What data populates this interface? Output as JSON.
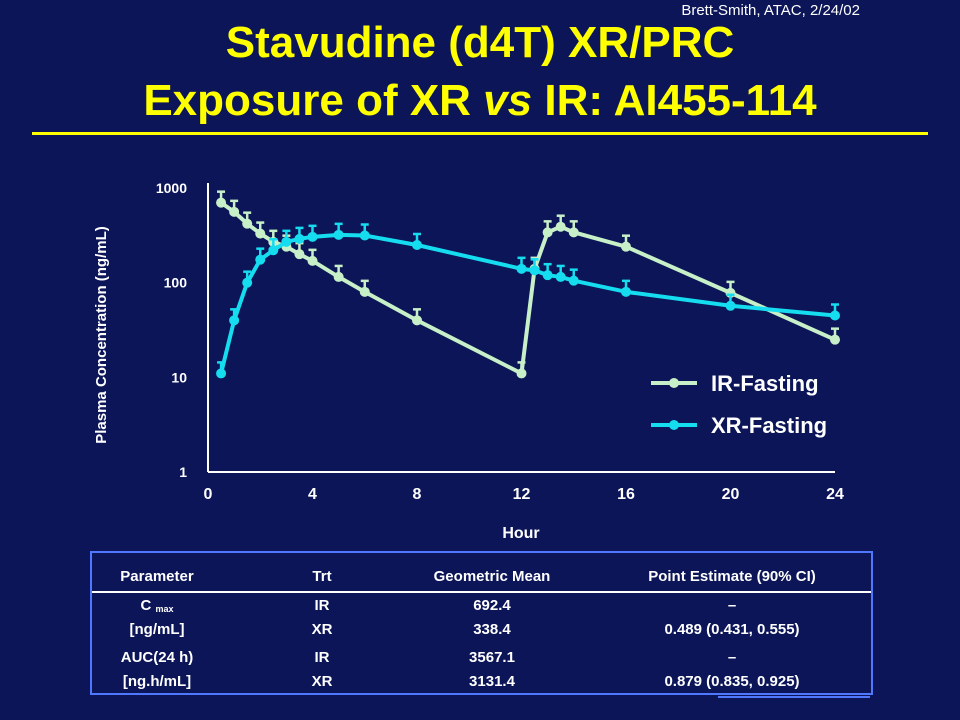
{
  "slide": {
    "credit": "Brett-Smith, ATAC, 2/24/02",
    "title_line1": "Stavudine (d4T) XR/PRC",
    "title_line2_pre": "Exposure of XR ",
    "title_line2_italic": "vs",
    "title_line2_post": " IR:  AI455-114"
  },
  "chart_data": {
    "type": "line",
    "ylabel": "Plasma Concentration (ng/mL)",
    "xlabel": "Hour",
    "x_ticks": [
      "0",
      "4",
      "8",
      "12",
      "16",
      "20",
      "24"
    ],
    "y_ticks": [
      "1",
      "10",
      "100",
      "1000"
    ],
    "yscale": "log",
    "xlim": [
      0,
      24
    ],
    "ylim": [
      1,
      1000
    ],
    "legend_position": "bottom-right",
    "series": [
      {
        "name": "IR-Fasting",
        "color": "#c8f0c8",
        "x": [
          0.5,
          1,
          1.5,
          2,
          2.5,
          3,
          3.5,
          4,
          5,
          6,
          8,
          12,
          12.5,
          13,
          13.5,
          14,
          16,
          20,
          24
        ],
        "y": [
          700,
          560,
          420,
          330,
          270,
          240,
          200,
          170,
          115,
          80,
          40,
          11,
          140,
          340,
          390,
          340,
          240,
          78,
          25
        ]
      },
      {
        "name": "XR-Fasting",
        "color": "#16dcf0",
        "x": [
          0.5,
          1,
          1.5,
          2,
          2.5,
          3,
          3.5,
          4,
          5,
          6,
          8,
          12,
          12.5,
          13,
          13.5,
          14,
          16,
          20,
          24
        ],
        "y": [
          11,
          40,
          100,
          175,
          220,
          270,
          290,
          305,
          320,
          315,
          250,
          140,
          135,
          120,
          115,
          105,
          80,
          57,
          45
        ]
      }
    ]
  },
  "table": {
    "headers": [
      "Parameter",
      "Trt",
      "Geometric Mean",
      "Point Estimate (90% CI)"
    ],
    "rows": [
      {
        "param_main": "C",
        "param_sub": "max",
        "param_unit": "[ng/mL]",
        "trt": [
          "IR",
          "XR"
        ],
        "mean": [
          "692.4",
          "338.4"
        ],
        "estimate": [
          "–",
          "0.489 (0.431, 0.555)"
        ]
      },
      {
        "param_main": "AUC(24 h)",
        "param_sub": "",
        "param_unit": "[ng.h/mL]",
        "trt": [
          "IR",
          "XR"
        ],
        "mean": [
          "3567.1",
          "3131.4"
        ],
        "estimate": [
          "–",
          "0.879 (0.835, 0.925)"
        ]
      }
    ]
  }
}
